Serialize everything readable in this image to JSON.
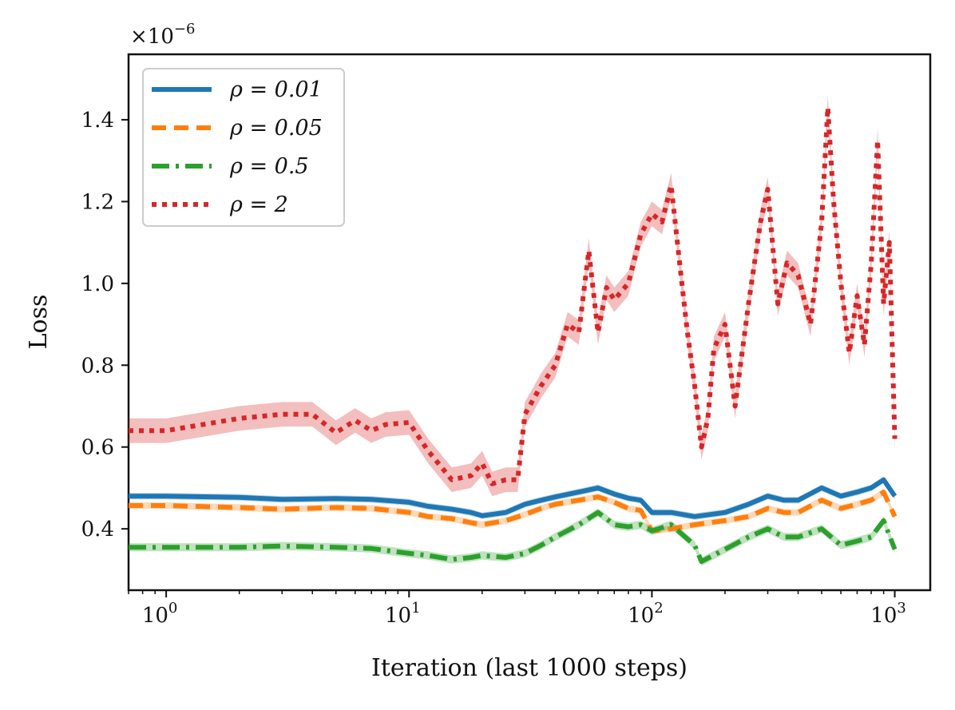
{
  "chart_data": {
    "type": "line",
    "title": "",
    "xlabel": "Iteration (last 1000 steps)",
    "ylabel": "Loss",
    "x_scale": "log",
    "xlim": [
      0.7,
      1400
    ],
    "ylim": [
      0.25,
      1.56
    ],
    "y_multiplier_label": "×10",
    "y_multiplier_exponent": "−6",
    "x_ticks": [
      {
        "value": 1,
        "base": "10",
        "exp": "0"
      },
      {
        "value": 10,
        "base": "10",
        "exp": "1"
      },
      {
        "value": 100,
        "base": "10",
        "exp": "2"
      },
      {
        "value": 1000,
        "base": "10",
        "exp": "3"
      }
    ],
    "y_ticks": [
      {
        "value": 0.4,
        "label": "0.4"
      },
      {
        "value": 0.6,
        "label": "0.6"
      },
      {
        "value": 0.8,
        "label": "0.8"
      },
      {
        "value": 1.0,
        "label": "1.0"
      },
      {
        "value": 1.2,
        "label": "1.2"
      },
      {
        "value": 1.4,
        "label": "1.4"
      }
    ],
    "legend_position": "top-left",
    "series": [
      {
        "name": "ρ = 0.01",
        "color": "#1f77b4",
        "style": "solid",
        "band": 0.008,
        "x": [
          0.7,
          1,
          2,
          3,
          5,
          7,
          10,
          12,
          15,
          18,
          20,
          25,
          30,
          35,
          40,
          50,
          60,
          70,
          80,
          90,
          100,
          120,
          150,
          200,
          250,
          300,
          350,
          400,
          500,
          600,
          700,
          800,
          900,
          1000
        ],
        "y": [
          0.48,
          0.48,
          0.477,
          0.472,
          0.474,
          0.472,
          0.465,
          0.455,
          0.448,
          0.44,
          0.432,
          0.44,
          0.46,
          0.47,
          0.478,
          0.49,
          0.5,
          0.485,
          0.475,
          0.47,
          0.44,
          0.44,
          0.43,
          0.44,
          0.46,
          0.48,
          0.47,
          0.47,
          0.5,
          0.48,
          0.49,
          0.5,
          0.52,
          0.48
        ]
      },
      {
        "name": "ρ = 0.05",
        "color": "#ff7f0e",
        "style": "dashed",
        "band": 0.008,
        "x": [
          0.7,
          1,
          2,
          3,
          5,
          7,
          10,
          12,
          15,
          18,
          20,
          25,
          30,
          35,
          40,
          50,
          60,
          70,
          80,
          90,
          100,
          120,
          150,
          200,
          250,
          300,
          350,
          400,
          500,
          600,
          700,
          800,
          900,
          1000
        ],
        "y": [
          0.457,
          0.457,
          0.452,
          0.448,
          0.452,
          0.45,
          0.44,
          0.43,
          0.425,
          0.415,
          0.41,
          0.42,
          0.435,
          0.45,
          0.46,
          0.47,
          0.478,
          0.465,
          0.45,
          0.445,
          0.395,
          0.4,
          0.41,
          0.42,
          0.43,
          0.45,
          0.44,
          0.44,
          0.47,
          0.45,
          0.46,
          0.47,
          0.49,
          0.43
        ]
      },
      {
        "name": "ρ = 0.5",
        "color": "#2ca02c",
        "style": "dashdot",
        "band": 0.01,
        "x": [
          0.7,
          1,
          2,
          3,
          5,
          7,
          10,
          12,
          15,
          18,
          20,
          25,
          30,
          35,
          40,
          50,
          60,
          70,
          80,
          90,
          100,
          120,
          150,
          160,
          200,
          250,
          300,
          350,
          400,
          500,
          600,
          700,
          800,
          900,
          1000
        ],
        "y": [
          0.355,
          0.355,
          0.355,
          0.358,
          0.355,
          0.352,
          0.34,
          0.335,
          0.325,
          0.33,
          0.335,
          0.33,
          0.34,
          0.36,
          0.38,
          0.41,
          0.44,
          0.41,
          0.405,
          0.41,
          0.395,
          0.41,
          0.36,
          0.32,
          0.35,
          0.38,
          0.4,
          0.38,
          0.38,
          0.4,
          0.36,
          0.37,
          0.38,
          0.42,
          0.35
        ]
      },
      {
        "name": "ρ = 2",
        "color": "#d62728",
        "style": "dotted",
        "band": 0.03,
        "x": [
          0.7,
          1,
          2,
          3,
          4,
          5,
          6,
          7,
          8,
          10,
          12,
          15,
          18,
          20,
          22,
          25,
          28,
          30,
          35,
          40,
          45,
          50,
          55,
          60,
          65,
          70,
          80,
          90,
          100,
          110,
          120,
          130,
          140,
          150,
          160,
          170,
          180,
          200,
          220,
          250,
          280,
          300,
          330,
          360,
          400,
          450,
          500,
          530,
          560,
          600,
          650,
          700,
          750,
          800,
          850,
          900,
          950,
          1000
        ],
        "y": [
          0.64,
          0.64,
          0.67,
          0.68,
          0.68,
          0.635,
          0.665,
          0.64,
          0.655,
          0.66,
          0.59,
          0.52,
          0.53,
          0.56,
          0.51,
          0.52,
          0.52,
          0.68,
          0.75,
          0.8,
          0.9,
          0.88,
          1.08,
          0.88,
          0.99,
          0.96,
          1.0,
          1.12,
          1.17,
          1.15,
          1.24,
          1.05,
          0.88,
          0.75,
          0.6,
          0.67,
          0.84,
          0.9,
          0.7,
          0.95,
          1.15,
          1.23,
          0.95,
          1.05,
          1.02,
          0.9,
          1.15,
          1.43,
          1.2,
          1.0,
          0.83,
          0.97,
          0.85,
          1.05,
          1.35,
          0.95,
          1.1,
          0.62
        ]
      }
    ]
  }
}
